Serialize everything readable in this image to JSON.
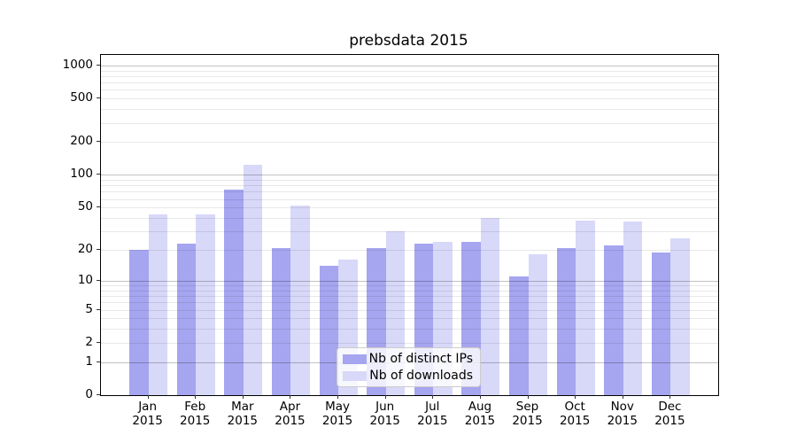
{
  "chart_data": {
    "type": "bar",
    "title": "prebsdata 2015",
    "categories": [
      "Jan",
      "Feb",
      "Mar",
      "Apr",
      "May",
      "Jun",
      "Jul",
      "Aug",
      "Sep",
      "Oct",
      "Nov",
      "Dec"
    ],
    "category_year": "2015",
    "series": [
      {
        "name": "Nb of distinct IPs",
        "color": "#a5a5f0",
        "values": [
          20,
          23,
          73,
          21,
          14,
          21,
          23,
          24,
          11,
          21,
          22,
          19
        ]
      },
      {
        "name": "Nb of downloads",
        "color": "#d8d8f8",
        "values": [
          43,
          43,
          125,
          52,
          16,
          30,
          24,
          40,
          18,
          38,
          37,
          26
        ]
      }
    ],
    "yscale": "log1p",
    "ylim": [
      0,
      1250
    ],
    "ytick_values": [
      0,
      1,
      2,
      5,
      10,
      20,
      50,
      100,
      200,
      500,
      1000
    ],
    "ytick_labels": [
      "0",
      "1",
      "2",
      "5",
      "10",
      "20",
      "50",
      "100",
      "200",
      "500",
      "1000"
    ],
    "major_grid_values": [
      1,
      10,
      100,
      1000
    ],
    "grid": "both",
    "legend": {
      "position": "lower center",
      "entries": [
        "Nb of distinct IPs",
        "Nb of downloads"
      ]
    },
    "colors": {
      "bar_distinct_ips": "#a5a5f0",
      "bar_downloads": "#d8d8f8",
      "grid_major": "#c6c6c6",
      "grid_minor": "#e9e9e9",
      "frame": "#000000",
      "text": "#000000",
      "background": "#ffffff"
    }
  }
}
